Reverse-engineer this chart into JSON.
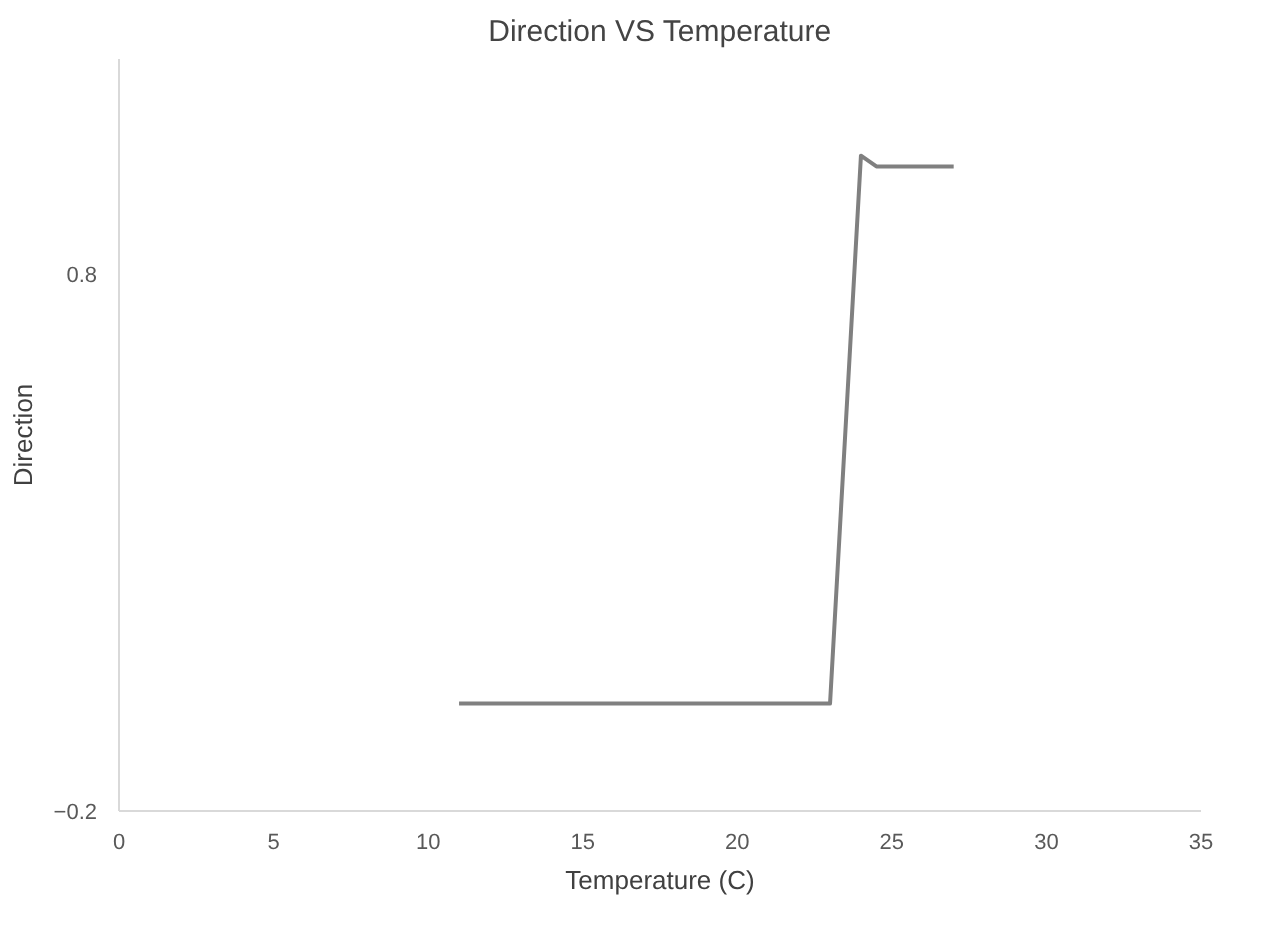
{
  "chart_data": {
    "type": "line",
    "title": "Direction VS Temperature",
    "xlabel": "Temperature (C)",
    "ylabel": "Direction",
    "x": [
      11,
      17,
      22,
      23,
      24,
      24.5,
      27
    ],
    "series": [
      {
        "color": "#808080",
        "values": [
          0,
          0,
          0,
          0,
          1.02,
          1.0,
          1.0
        ]
      }
    ],
    "xlim": [
      0,
      35
    ],
    "xticks": [
      0,
      5,
      10,
      15,
      20,
      25,
      30,
      35
    ],
    "ylim": [
      -0.2,
      1.2
    ],
    "yticks": [
      -0.2,
      0.8
    ],
    "grid": false,
    "marker": "none",
    "line_style": "solid"
  }
}
